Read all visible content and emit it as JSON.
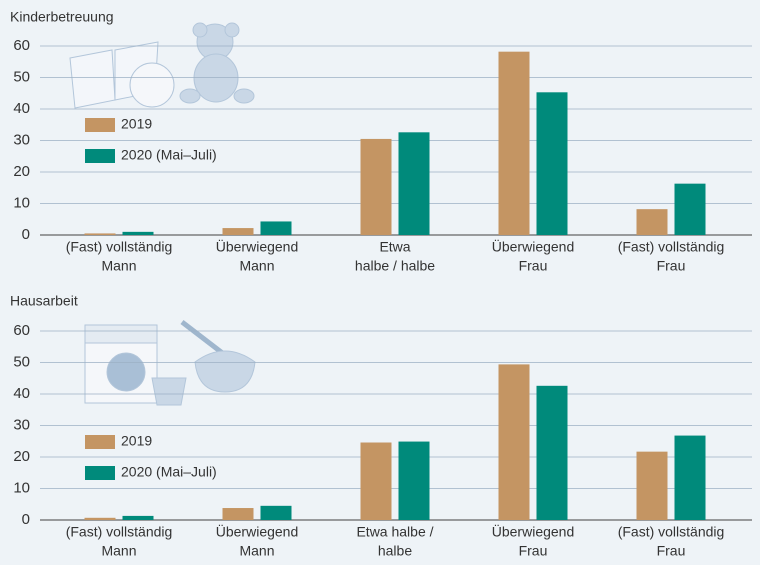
{
  "chart_data": [
    {
      "type": "bar",
      "title": "Kinderbetreuung",
      "categories": [
        [
          "(Fast) vollständig",
          "Mann"
        ],
        [
          "Überwiegend",
          "Mann"
        ],
        [
          "Etwa",
          "halbe / halbe"
        ],
        [
          "Überwiegend",
          "Frau"
        ],
        [
          "(Fast) vollständig",
          "Frau"
        ]
      ],
      "series": [
        {
          "name": "2019",
          "color": "#c49563",
          "values": [
            0.5,
            2.2,
            30.5,
            58.2,
            8.2
          ]
        },
        {
          "name": "2020 (Mai–Juli)",
          "color": "#008a7b",
          "values": [
            1,
            4.3,
            32.6,
            45.3,
            16.3
          ]
        }
      ],
      "ylim": [
        0,
        60
      ],
      "yticks": [
        0,
        10,
        20,
        30,
        40,
        50,
        60
      ],
      "grid": true
    },
    {
      "type": "bar",
      "title": "Hausarbeit",
      "categories": [
        [
          "(Fast) vollständig",
          "Mann"
        ],
        [
          "Überwiegend",
          "Mann"
        ],
        [
          "Etwa halbe /",
          "halbe"
        ],
        [
          "Überwiegend",
          "Frau"
        ],
        [
          "(Fast) vollständig",
          "Frau"
        ]
      ],
      "series": [
        {
          "name": "2019",
          "color": "#c49563",
          "values": [
            0.7,
            3.8,
            24.6,
            49.4,
            21.7
          ]
        },
        {
          "name": "2020 (Mai–Juli)",
          "color": "#008a7b",
          "values": [
            1.3,
            4.5,
            24.9,
            42.6,
            26.8
          ]
        }
      ],
      "ylim": [
        0,
        60
      ],
      "yticks": [
        0,
        10,
        20,
        30,
        40,
        50,
        60
      ],
      "grid": true
    }
  ]
}
